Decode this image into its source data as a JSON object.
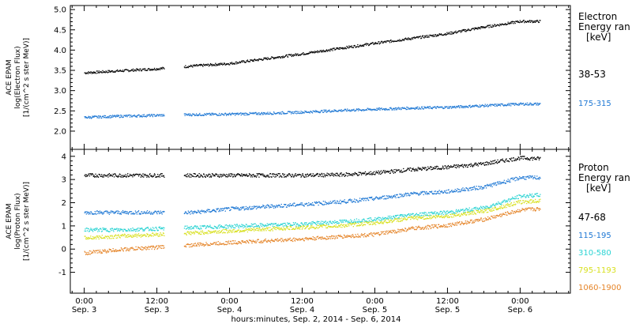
{
  "chart_data": [
    {
      "type": "scatter",
      "panel": "electron",
      "ylabel": [
        "ACE EPAM",
        "log(Electron Flux)",
        "[1/(cm^2 s ster MeV)]"
      ],
      "ylim": [
        1.55,
        5.1
      ],
      "yticks": [
        2.0,
        2.5,
        3.0,
        3.5,
        4.0,
        4.5,
        5.0
      ],
      "ytick_labels": [
        "2.0",
        "2.5",
        "3.0",
        "3.5",
        "4.0",
        "4.5",
        "5.0"
      ],
      "legend_title": [
        "Electron",
        "Energy ran",
        "[keV]"
      ],
      "series": [
        {
          "name": "38-53",
          "color": "#000000",
          "x": [
            0,
            6,
            12,
            18,
            24,
            30,
            36,
            42,
            48,
            54,
            60,
            66,
            72,
            75
          ],
          "y": [
            3.45,
            3.5,
            3.55,
            3.62,
            3.68,
            3.8,
            3.92,
            4.05,
            4.18,
            4.3,
            4.42,
            4.58,
            4.72,
            4.72
          ]
        },
        {
          "name": "175-315",
          "color": "#1f78d4",
          "x": [
            0,
            6,
            12,
            18,
            24,
            30,
            36,
            42,
            48,
            54,
            60,
            66,
            72,
            75
          ],
          "y": [
            2.35,
            2.38,
            2.4,
            2.42,
            2.43,
            2.45,
            2.48,
            2.52,
            2.55,
            2.58,
            2.6,
            2.64,
            2.68,
            2.68
          ]
        }
      ]
    },
    {
      "type": "scatter",
      "panel": "proton",
      "ylabel": [
        "ACE EPAM",
        "log(Proton Flux)",
        "[1/(cm^2 s ster MeV)]"
      ],
      "ylim": [
        -1.9,
        4.3
      ],
      "yticks": [
        -1,
        0,
        1,
        2,
        3,
        4
      ],
      "ytick_labels": [
        "-1",
        "0",
        "1",
        "2",
        "3",
        "4"
      ],
      "legend_title": [
        "Proton",
        "Energy ran",
        "[keV]"
      ],
      "series": [
        {
          "name": "47-68",
          "color": "#000000",
          "x": [
            0,
            6,
            12,
            18,
            24,
            30,
            36,
            42,
            48,
            54,
            60,
            66,
            72,
            75
          ],
          "y": [
            3.2,
            3.2,
            3.2,
            3.2,
            3.2,
            3.2,
            3.2,
            3.22,
            3.3,
            3.45,
            3.55,
            3.7,
            3.95,
            3.92
          ]
        },
        {
          "name": "115-195",
          "color": "#1f78d4",
          "x": [
            0,
            6,
            12,
            18,
            24,
            30,
            36,
            42,
            48,
            54,
            60,
            66,
            72,
            75
          ],
          "y": [
            1.6,
            1.6,
            1.6,
            1.6,
            1.75,
            1.85,
            1.95,
            2.05,
            2.2,
            2.4,
            2.5,
            2.7,
            3.1,
            3.1
          ]
        },
        {
          "name": "310-580",
          "color": "#2ad3d3",
          "x": [
            0,
            6,
            12,
            18,
            24,
            30,
            36,
            42,
            48,
            54,
            60,
            66,
            72,
            75
          ],
          "y": [
            0.85,
            0.85,
            0.9,
            0.95,
            1.0,
            1.05,
            1.1,
            1.2,
            1.3,
            1.5,
            1.6,
            1.8,
            2.3,
            2.35
          ]
        },
        {
          "name": "795-1193",
          "color": "#d8e020",
          "x": [
            0,
            6,
            12,
            18,
            24,
            30,
            36,
            42,
            48,
            54,
            60,
            66,
            72,
            75
          ],
          "y": [
            0.5,
            0.58,
            0.65,
            0.72,
            0.8,
            0.88,
            0.95,
            1.02,
            1.15,
            1.35,
            1.45,
            1.65,
            2.05,
            2.1
          ]
        },
        {
          "name": "1060-1900",
          "color": "#e5852a",
          "x": [
            0,
            6,
            12,
            18,
            24,
            30,
            36,
            42,
            48,
            54,
            60,
            66,
            72,
            75
          ],
          "y": [
            -0.15,
            0.0,
            0.1,
            0.2,
            0.3,
            0.38,
            0.45,
            0.55,
            0.65,
            0.9,
            1.05,
            1.3,
            1.7,
            1.75
          ]
        }
      ]
    }
  ],
  "time_axis": {
    "tick_hours": [
      0,
      12,
      24,
      36,
      48,
      60,
      72
    ],
    "tick_labels": [
      [
        "0:00",
        "Sep. 3"
      ],
      [
        "12:00",
        "Sep. 3"
      ],
      [
        "0:00",
        "Sep. 4"
      ],
      [
        "12:00",
        "Sep. 4"
      ],
      [
        "0:00",
        "Sep. 5"
      ],
      [
        "12:00",
        "Sep. 5"
      ],
      [
        "0:00",
        "Sep. 6"
      ]
    ],
    "xlim": [
      -2.3,
      80.3
    ],
    "gap": [
      13.2,
      16.4
    ],
    "data_end": 75.3,
    "xlabel": "hours:minutes, Sep.  2, 2014 - Sep.  6, 2014"
  }
}
